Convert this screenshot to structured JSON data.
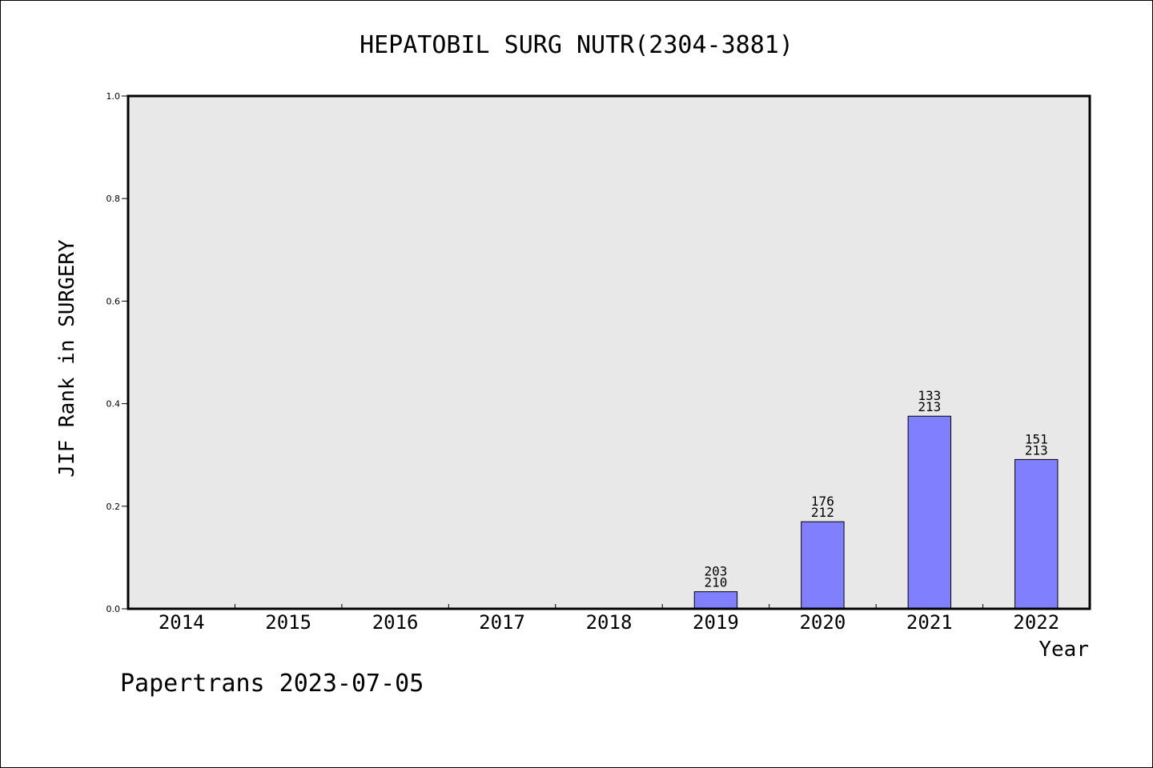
{
  "chart_data": {
    "type": "bar",
    "title": "HEPATOBIL SURG NUTR(2304-3881)",
    "xlabel": "Year",
    "ylabel": "JIF Rank in SURGERY",
    "ylim": [
      0,
      1.0
    ],
    "yticks": [
      "0.0",
      "0.2",
      "0.4",
      "0.6",
      "0.8",
      "1.0"
    ],
    "categories": [
      "2014",
      "2015",
      "2016",
      "2017",
      "2018",
      "2019",
      "2020",
      "2021",
      "2022"
    ],
    "values": [
      null,
      null,
      null,
      null,
      null,
      0.0333,
      0.1698,
      0.3756,
      0.2911
    ],
    "bar_labels": [
      null,
      null,
      null,
      null,
      null,
      {
        "rank": "203",
        "total": "210"
      },
      {
        "rank": "176",
        "total": "212"
      },
      {
        "rank": "133",
        "total": "213"
      },
      {
        "rank": "151",
        "total": "213"
      }
    ],
    "grid": false,
    "colors": {
      "bar_fill": "#8080ff",
      "plot_background": "#e8e8e8",
      "axis": "#000000"
    }
  },
  "footer": {
    "watermark": "Papertrans 2023-07-05"
  }
}
